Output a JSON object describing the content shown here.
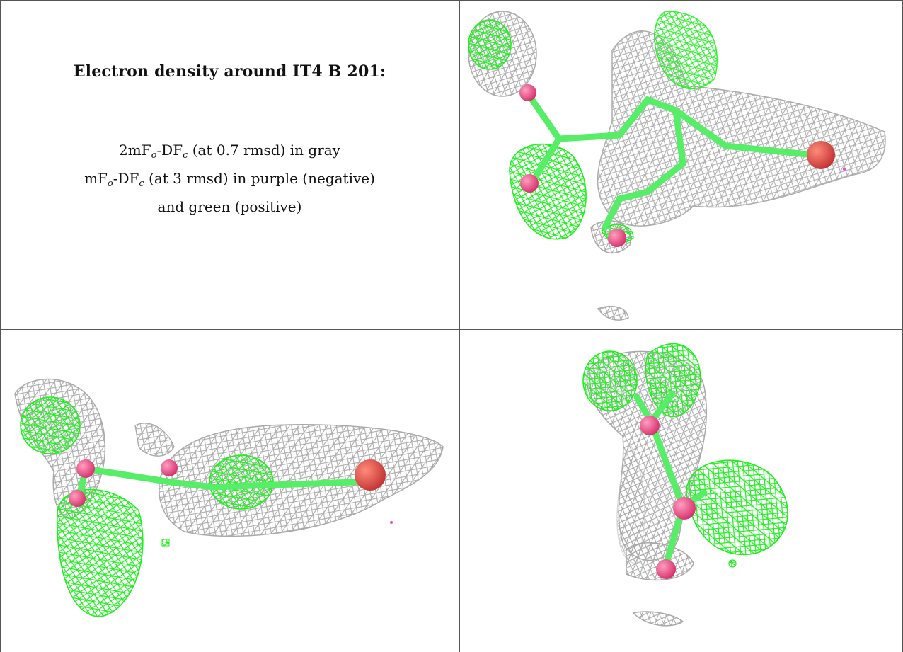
{
  "caption": {
    "title": "Electron density around IT4 B 201:",
    "lines": [
      {
        "pre": "2mF",
        "sub1": "o",
        "mid": "-DF",
        "sub2": "c",
        "post": " (at 0.7 rmsd) in gray"
      },
      {
        "pre": "mF",
        "sub1": "o",
        "mid": "-DF",
        "sub2": "c",
        "post": " (at 3 rmsd) in purple (negative)"
      },
      {
        "pre": "and green (positive)",
        "sub1": "",
        "mid": "",
        "sub2": "",
        "post": ""
      }
    ]
  },
  "colors": {
    "gray_mesh": "#a9a9a9",
    "green_mesh": "#22ee22",
    "stick": "#55ee66",
    "atom_pink": "#e8417c",
    "atom_red": "#d94040",
    "purple": "#e04be0"
  },
  "panels": [
    {
      "id": "top-right",
      "view": "front"
    },
    {
      "id": "bottom-left",
      "view": "side"
    },
    {
      "id": "bottom-right",
      "view": "top"
    }
  ]
}
